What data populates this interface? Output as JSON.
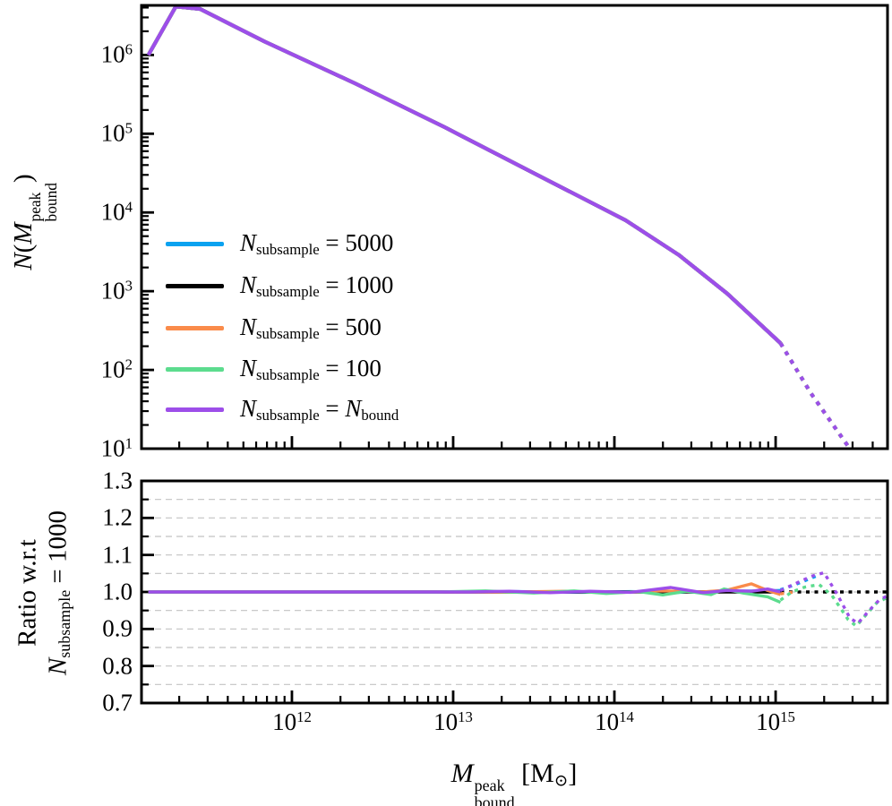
{
  "figure": {
    "background": "#ffffff",
    "axes_color": "#000000",
    "grid_color": "#c2c2c2"
  },
  "legend": {
    "entries": [
      {
        "id": "n5000",
        "label": "$N$_{subsample} = 5000",
        "color": "#0aa2f0"
      },
      {
        "id": "n1000",
        "label": "$N$_{subsample} = 1000",
        "color": "#000000"
      },
      {
        "id": "n500",
        "label": "$N$_{subsample} = 500",
        "color": "#fa8b4a"
      },
      {
        "id": "n100",
        "label": "$N$_{subsample} = 100",
        "color": "#5cdc8e"
      },
      {
        "id": "nbound",
        "label": "$N$_{subsample} = $N$_{bound}",
        "color": "#9d4ee9"
      }
    ]
  },
  "chart_data": {
    "type": "line",
    "xscale": "log",
    "xlabel": "$M$^^{peak}_{bound} [M_{⊙}]",
    "x_range_log": [
      11.067,
      15.694
    ],
    "x_ticks": [
      {
        "log": 12,
        "label": "10^{12}"
      },
      {
        "log": 13,
        "label": "10^{13}"
      },
      {
        "log": 14,
        "label": "10^{14}"
      },
      {
        "log": 15,
        "label": "10^{15}"
      }
    ],
    "panels": [
      {
        "id": "mass-function",
        "yscale": "log",
        "ylabel": "$N$($M$^^{peak}_{bound})",
        "y_range_log": [
          1.0,
          6.63
        ],
        "y_ticks": [
          {
            "log": 6,
            "label": "10^{6}"
          },
          {
            "log": 5,
            "label": "10^{5}"
          },
          {
            "log": 4,
            "label": "10^{4}"
          },
          {
            "log": 3,
            "label": "10^{3}"
          },
          {
            "log": 2,
            "label": "10^{2}"
          },
          {
            "log": 1,
            "label": "10^{1}"
          }
        ],
        "grid": false,
        "note": "all five subsample curves overlap exactly; purple drawn on top",
        "shared_curve": {
          "solid_log_points": [
            [
              11.11,
              6.0
            ],
            [
              11.28,
              6.615
            ],
            [
              11.43,
              6.585
            ],
            [
              11.83,
              6.17
            ],
            [
              12.39,
              5.64
            ],
            [
              12.95,
              5.08
            ],
            [
              13.51,
              4.49
            ],
            [
              14.07,
              3.9
            ],
            [
              14.4,
              3.46
            ],
            [
              14.7,
              2.97
            ],
            [
              15.03,
              2.34
            ]
          ],
          "dotted_log_points": [
            [
              15.03,
              2.34
            ],
            [
              15.22,
              1.7
            ],
            [
              15.46,
              1.0
            ]
          ]
        }
      },
      {
        "id": "ratio",
        "yscale": "linear",
        "ylabel_line1": "Ratio w.r.t",
        "ylabel_line2": "$N$_{subsample} = 1000",
        "y_range": [
          0.7,
          1.3
        ],
        "y_major_ticks": [
          {
            "v": 1.3,
            "label": "1.3"
          },
          {
            "v": 1.2,
            "label": "1.2"
          },
          {
            "v": 1.1,
            "label": "1.1"
          },
          {
            "v": 1.0,
            "label": "1.0"
          },
          {
            "v": 0.9,
            "label": "0.9"
          },
          {
            "v": 0.8,
            "label": "0.8"
          },
          {
            "v": 0.7,
            "label": "0.7"
          }
        ],
        "y_minor_ticks": [
          0.75,
          0.85,
          0.95,
          1.05,
          1.15,
          1.25
        ],
        "grid_values": [
          0.75,
          0.8,
          0.85,
          0.9,
          0.95,
          1.0,
          1.05,
          1.1,
          1.15,
          1.2,
          1.25
        ],
        "grid_style": "dashed",
        "series": [
          {
            "id": "n5000",
            "color": "#0aa2f0",
            "solid": [
              [
                11.11,
                1.0
              ],
              [
                13.0,
                1.0
              ],
              [
                13.4,
                1.001
              ],
              [
                13.8,
                0.999
              ],
              [
                14.1,
                1.001
              ],
              [
                14.4,
                0.999
              ],
              [
                14.7,
                1.002
              ],
              [
                14.9,
                1.003
              ],
              [
                15.03,
                1.004
              ]
            ],
            "dotted": [
              [
                15.03,
                1.006
              ],
              [
                15.11,
                1.018
              ],
              [
                15.19,
                1.032
              ],
              [
                15.27,
                1.046
              ]
            ]
          },
          {
            "id": "n1000",
            "color": "#000000",
            "solid": [
              [
                11.11,
                1.0
              ],
              [
                15.03,
                1.0
              ]
            ],
            "dotted": [
              [
                15.03,
                1.0
              ],
              [
                15.694,
                1.0
              ]
            ]
          },
          {
            "id": "n500",
            "color": "#fa8b4a",
            "solid": [
              [
                11.11,
                1.0
              ],
              [
                13.4,
                1.0
              ],
              [
                13.7,
                1.002
              ],
              [
                14.0,
                0.998
              ],
              [
                14.3,
                1.003
              ],
              [
                14.55,
                1.0
              ],
              [
                14.7,
                1.005
              ],
              [
                14.85,
                1.022
              ],
              [
                14.95,
                1.004
              ],
              [
                15.03,
                0.993
              ]
            ],
            "dotted": [
              [
                15.03,
                0.995
              ],
              [
                15.12,
                1.0
              ]
            ]
          },
          {
            "id": "n100",
            "color": "#5cdc8e",
            "solid": [
              [
                11.11,
                1.0
              ],
              [
                12.9,
                1.0
              ],
              [
                13.2,
                1.003
              ],
              [
                13.5,
                0.997
              ],
              [
                13.75,
                1.003
              ],
              [
                13.95,
                0.996
              ],
              [
                14.15,
                1.001
              ],
              [
                14.3,
                0.992
              ],
              [
                14.45,
                1.002
              ],
              [
                14.6,
                0.993
              ],
              [
                14.68,
                1.008
              ],
              [
                14.8,
                0.997
              ],
              [
                14.95,
                0.987
              ],
              [
                15.03,
                0.972
              ]
            ],
            "dotted": [
              [
                15.03,
                0.978
              ],
              [
                15.1,
                1.0
              ],
              [
                15.18,
                1.013
              ],
              [
                15.27,
                1.02
              ],
              [
                15.35,
                0.99
              ],
              [
                15.45,
                0.925
              ],
              [
                15.5,
                0.908
              ],
              [
                15.57,
                0.943
              ],
              [
                15.63,
                0.972
              ],
              [
                15.694,
                0.985
              ]
            ]
          },
          {
            "id": "nbound",
            "color": "#9d4ee9",
            "solid": [
              [
                11.11,
                1.0
              ],
              [
                13.1,
                1.0
              ],
              [
                13.35,
                1.002
              ],
              [
                13.6,
                0.998
              ],
              [
                13.85,
                1.002
              ],
              [
                14.1,
                0.999
              ],
              [
                14.35,
                1.012
              ],
              [
                14.55,
                0.998
              ],
              [
                14.7,
                1.004
              ],
              [
                14.85,
                1.002
              ],
              [
                14.95,
                1.008
              ],
              [
                15.03,
                1.0
              ]
            ],
            "dotted": [
              [
                15.03,
                1.004
              ],
              [
                15.12,
                1.022
              ],
              [
                15.22,
                1.042
              ],
              [
                15.3,
                1.052
              ],
              [
                15.38,
                0.995
              ],
              [
                15.46,
                0.93
              ],
              [
                15.51,
                0.915
              ],
              [
                15.58,
                0.95
              ],
              [
                15.64,
                0.977
              ],
              [
                15.694,
                0.99
              ]
            ]
          }
        ]
      }
    ]
  }
}
